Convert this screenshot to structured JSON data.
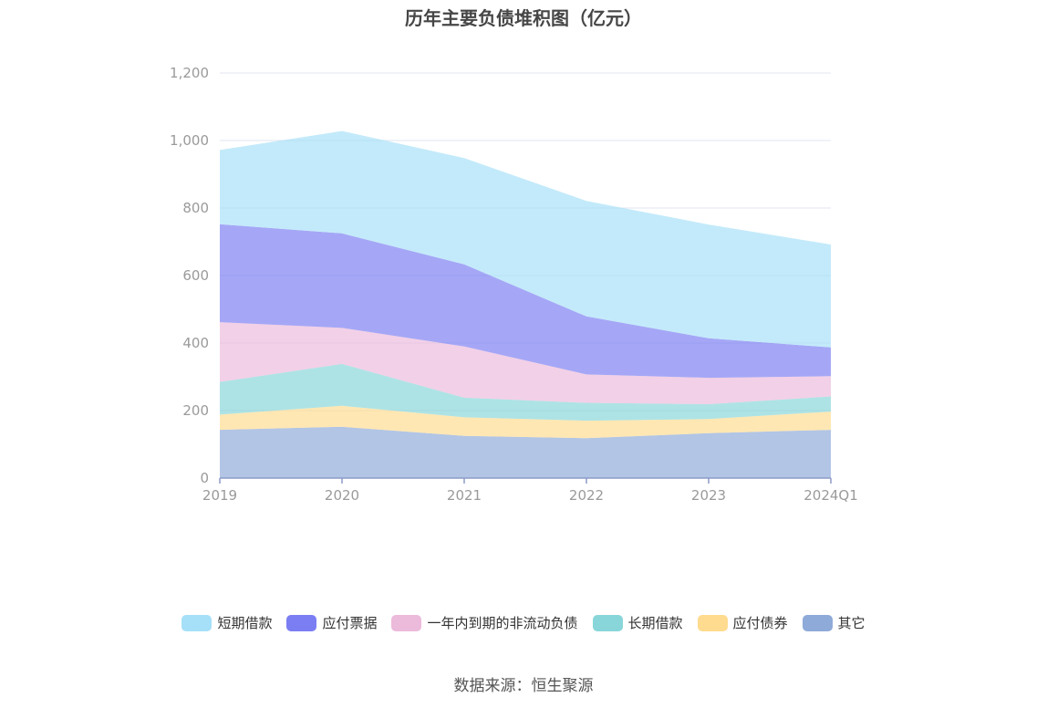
{
  "chart_data": {
    "type": "area",
    "title": "历年主要负债堆积图（亿元）",
    "categories": [
      "2019",
      "2020",
      "2021",
      "2022",
      "2023",
      "2024Q1"
    ],
    "ylim": [
      0,
      1200
    ],
    "yticks": [
      "0",
      "200",
      "400",
      "600",
      "800",
      "1,000",
      "1,200"
    ],
    "ytick_values": [
      0,
      200,
      400,
      600,
      800,
      1000,
      1200
    ],
    "stacked": true,
    "grid": true,
    "legend_position": "bottom",
    "series": [
      {
        "name": "其它",
        "color": "#8eaad9",
        "values": [
          143,
          152,
          125,
          118,
          133,
          143
        ]
      },
      {
        "name": "应付债券",
        "color": "#ffdb8f",
        "values": [
          45,
          62,
          55,
          52,
          42,
          54
        ]
      },
      {
        "name": "长期借款",
        "color": "#88d6d9",
        "values": [
          97,
          124,
          58,
          53,
          44,
          45
        ]
      },
      {
        "name": "一年内到期的非流动负债",
        "color": "#ecbadb",
        "values": [
          177,
          107,
          152,
          84,
          78,
          60
        ]
      },
      {
        "name": "应付票据",
        "color": "#7b7ef2",
        "values": [
          290,
          280,
          243,
          172,
          117,
          85
        ]
      },
      {
        "name": "短期借款",
        "color": "#a6e0f8",
        "values": [
          220,
          303,
          315,
          342,
          337,
          305
        ]
      }
    ],
    "legend_order": [
      "短期借款",
      "应付票据",
      "一年内到期的非流动负债",
      "长期借款",
      "应付债券",
      "其它"
    ]
  },
  "source_text": "数据来源：恒生聚源"
}
